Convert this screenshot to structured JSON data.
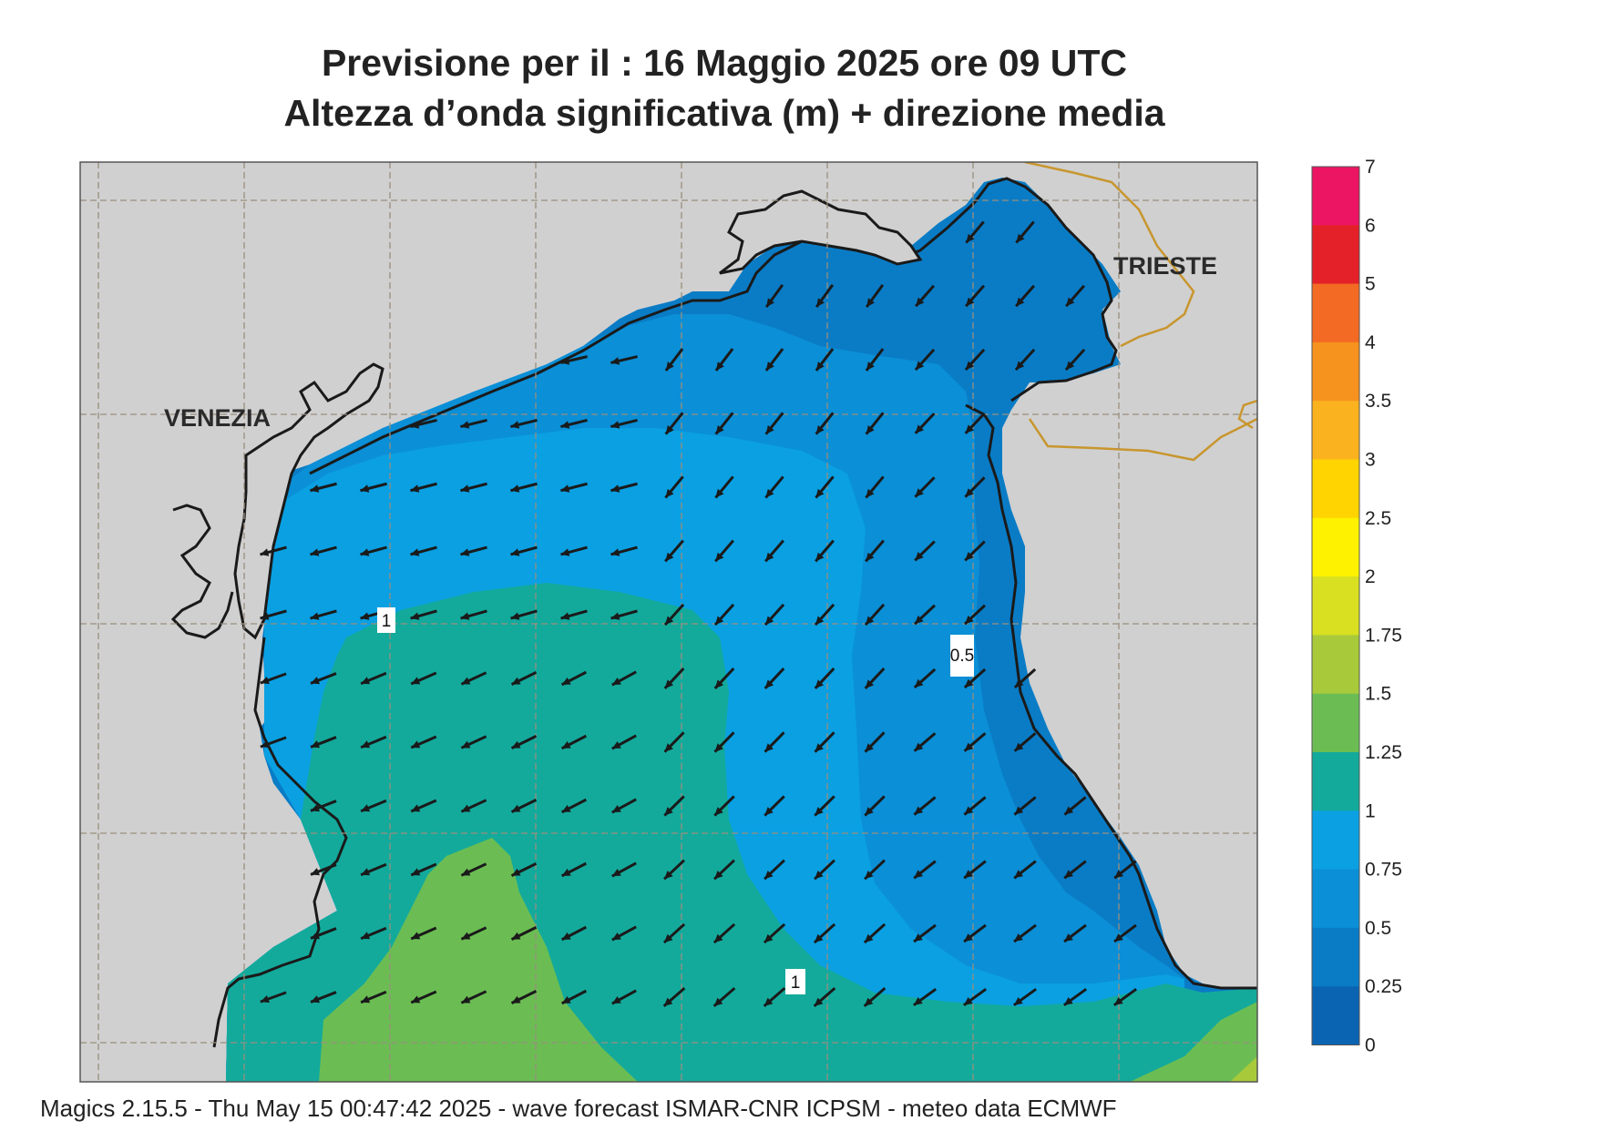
{
  "title": {
    "line1": "Previsione per il  :  16   Maggio  2025   ore 09 UTC",
    "line2": "Altezza d’onda significativa (m) + direzione media"
  },
  "cities": [
    {
      "name": "VENEZIA"
    },
    {
      "name": "TRIESTE"
    }
  ],
  "contour_labels": [
    "1",
    "0.5",
    "1"
  ],
  "footer": "Magics 2.15.5 - Thu May 15 00:47:42 2025 - wave forecast  ISMAR-CNR  ICPSM - meteo data   ECMWF",
  "colorbar": {
    "labels": [
      "7",
      "6",
      "5",
      "4",
      "3.5",
      "3",
      "2.5",
      "2",
      "1.75",
      "1.5",
      "1.25",
      "1",
      "0.75",
      "0.5",
      "0.25",
      "0"
    ],
    "colors": [
      "#ec1563",
      "#e42128",
      "#f26a23",
      "#f6921e",
      "#fbb21f",
      "#ffd400",
      "#fff200",
      "#d8e021",
      "#a8ca3a",
      "#6bbd53",
      "#13aa9c",
      "#0aa0e2",
      "#0b8fd6",
      "#0a7cc6",
      "#0a64b2"
    ]
  },
  "map_colors": {
    "land": "#d0d0d0",
    "coast": "#1a1a1a",
    "border": "#c8962e",
    "grid": "#9a8e7e",
    "arrow": "#1a1a1a"
  }
}
